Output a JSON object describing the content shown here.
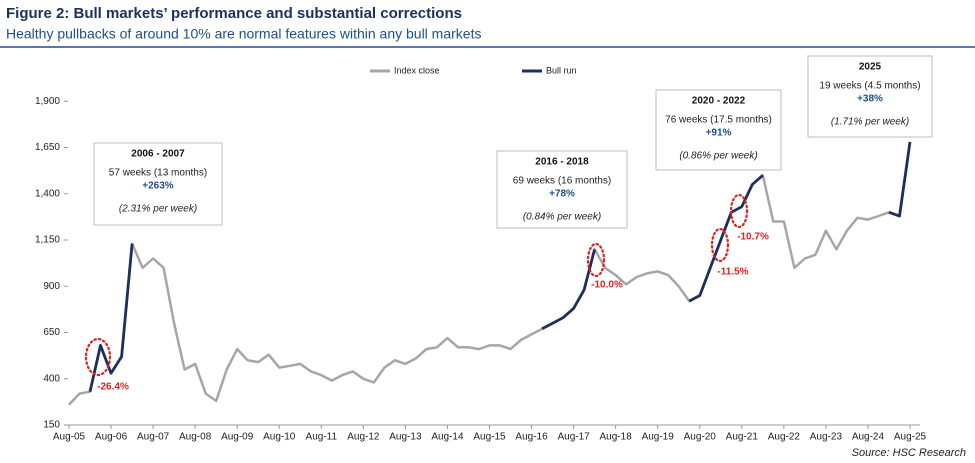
{
  "chart_data": {
    "type": "line",
    "title": "Figure 2: Bull markets’ performance and substantial corrections",
    "subtitle": "Healthy pullbacks of around 10% are normal features within any bull markets",
    "source": "Source: HSC Research",
    "categories": [
      "Aug-05",
      null,
      null,
      null,
      "Aug-06",
      null,
      null,
      null,
      "Aug-07",
      null,
      null,
      null,
      "Aug-08",
      null,
      null,
      null,
      "Aug-09",
      null,
      null,
      null,
      "Aug-10",
      null,
      null,
      null,
      "Aug-11",
      null,
      null,
      null,
      "Aug-12",
      null,
      null,
      null,
      "Aug-13",
      null,
      null,
      null,
      "Aug-14",
      null,
      null,
      null,
      "Aug-15",
      null,
      null,
      null,
      "Aug-16",
      null,
      null,
      null,
      "Aug-17",
      null,
      null,
      null,
      "Aug-18",
      null,
      null,
      null,
      "Aug-19",
      null,
      null,
      null,
      "Aug-20",
      null,
      null,
      null,
      "Aug-21",
      null,
      null,
      null,
      "Aug-22",
      null,
      null,
      null,
      "Aug-23",
      null,
      null,
      null,
      "Aug-24",
      null,
      null,
      null,
      "Aug-25"
    ],
    "series": [
      {
        "name": "Index close",
        "color": "#a6a6a6",
        "values": [
          260,
          320,
          330,
          580,
          430,
          520,
          1130,
          1000,
          1050,
          1000,
          700,
          450,
          480,
          320,
          280,
          450,
          560,
          500,
          490,
          530,
          460,
          470,
          480,
          440,
          420,
          390,
          420,
          440,
          400,
          380,
          460,
          500,
          480,
          510,
          560,
          570,
          620,
          570,
          570,
          560,
          580,
          580,
          560,
          610,
          640,
          670,
          700,
          730,
          780,
          880,
          1100,
          1000,
          960,
          910,
          950,
          970,
          980,
          960,
          900,
          820,
          850,
          1000,
          1150,
          1300,
          1330,
          1450,
          1500,
          1250,
          1250,
          1000,
          1050,
          1070,
          1200,
          1100,
          1200,
          1270,
          1260,
          1280,
          1300,
          1280,
          1680
        ]
      },
      {
        "name": "Bull run",
        "color": "#1f2f5c",
        "values": [
          null,
          null,
          330,
          580,
          430,
          520,
          1130,
          null,
          null,
          null,
          null,
          null,
          null,
          null,
          null,
          null,
          null,
          null,
          null,
          null,
          null,
          null,
          null,
          null,
          null,
          null,
          null,
          null,
          null,
          null,
          null,
          null,
          null,
          null,
          null,
          null,
          null,
          null,
          null,
          null,
          null,
          null,
          null,
          null,
          null,
          670,
          700,
          730,
          780,
          880,
          1100,
          null,
          null,
          null,
          null,
          null,
          null,
          null,
          null,
          820,
          850,
          1000,
          1150,
          1300,
          1330,
          1450,
          1500,
          null,
          null,
          null,
          null,
          null,
          null,
          null,
          null,
          null,
          null,
          null,
          1300,
          1280,
          1680
        ]
      }
    ],
    "ylim": [
      150,
      1950
    ],
    "yticks": [
      150,
      400,
      650,
      900,
      {
        "value": 1150,
        "label": "1,150"
      },
      {
        "value": 1400,
        "label": "1,400"
      },
      {
        "value": 1650,
        "label": "1,650"
      },
      {
        "value": 1900,
        "label": "1,900"
      }
    ],
    "grid": false,
    "legend": "top",
    "annotations": [
      {
        "title": "2006 - 2007",
        "duration": "57 weeks (13 months)",
        "gain": "+263%",
        "rate": "(2.31% per week)"
      },
      {
        "title": "2016 - 2018",
        "duration": "69 weeks (16 months)",
        "gain": "+78%",
        "rate": "(0.84% per week)"
      },
      {
        "title": "2020 - 2022",
        "duration": "76 weeks (17.5 months)",
        "gain": "+91%",
        "rate": "(0.86% per week)"
      },
      {
        "title": "2025",
        "duration": "19 weeks (4.5 months)",
        "gain": "+38%",
        "rate": "(1.71% per week)"
      }
    ],
    "corrections": [
      "-26.4%",
      "-10.0%",
      "-11.5%",
      "-10.7%"
    ]
  }
}
